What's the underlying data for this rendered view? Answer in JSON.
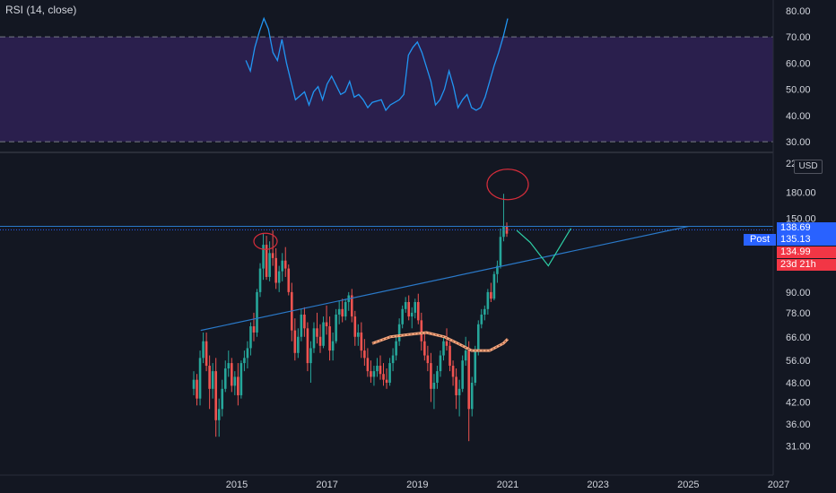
{
  "indicator": {
    "title": "RSI (14, close)"
  },
  "axis": {
    "currency": "USD"
  },
  "tags": {
    "last_price": "138.69",
    "post_label": "Post",
    "post_price": "135.13",
    "prev_price": "134.99",
    "countdown": "23d 21h"
  },
  "colors": {
    "up": "#26a69a",
    "down": "#ef5350",
    "rsi_line": "#2196f3",
    "rsi_band": "#2a1f4d",
    "trendline": "#2a79c9",
    "annotation_red": "#d62d3b",
    "annotation_green": "#2ed1a7",
    "annotation_orange": "#f7a87f"
  },
  "chart_data": [
    {
      "type": "line",
      "title": "RSI (14, close)",
      "y_ticks": [
        "80.00",
        "70.00",
        "60.00",
        "50.00",
        "40.00",
        "30.00"
      ],
      "ylim": [
        29,
        82
      ],
      "bands": [
        30,
        70
      ],
      "x": [
        2015.2,
        2015.3,
        2015.4,
        2015.5,
        2015.6,
        2015.7,
        2015.8,
        2015.9,
        2016.0,
        2016.1,
        2016.3,
        2016.5,
        2016.6,
        2016.7,
        2016.8,
        2016.9,
        2017.0,
        2017.1,
        2017.3,
        2017.4,
        2017.5,
        2017.6,
        2017.7,
        2017.8,
        2017.9,
        2018.0,
        2018.2,
        2018.3,
        2018.4,
        2018.6,
        2018.7,
        2018.8,
        2018.9,
        2019.0,
        2019.1,
        2019.3,
        2019.4,
        2019.5,
        2019.6,
        2019.7,
        2019.8,
        2019.9,
        2020.0,
        2020.1,
        2020.2,
        2020.3,
        2020.4,
        2020.5,
        2020.6,
        2020.7,
        2020.8,
        2020.9,
        2021.0
      ],
      "values": [
        61,
        57,
        66,
        72,
        77,
        73,
        64,
        61,
        69,
        60,
        46,
        49,
        44,
        49,
        51,
        46,
        52,
        55,
        48,
        49,
        53,
        47,
        48,
        46,
        43,
        45,
        46,
        42,
        44,
        46,
        48,
        63,
        66,
        68,
        64,
        53,
        44,
        46,
        50,
        57,
        51,
        43,
        46,
        48,
        43,
        42,
        43,
        47,
        53,
        59,
        64,
        70,
        77
      ],
      "color": "#2196f3"
    },
    {
      "type": "candlestick",
      "y_ticks": [
        "220.00",
        "180.00",
        "150.00",
        "120.00",
        "90.00",
        "78.00",
        "66.00",
        "56.00",
        "48.00",
        "42.00",
        "36.00",
        "31.00"
      ],
      "x_ticks": [
        "2015",
        "2017",
        "2019",
        "2021",
        "2023",
        "2025",
        "2027"
      ],
      "scale": "log",
      "ylim": [
        29,
        230
      ],
      "ohlc": [
        [
          46,
          52,
          44,
          49
        ],
        [
          49,
          51,
          41,
          43
        ],
        [
          43,
          60,
          41,
          57
        ],
        [
          57,
          68,
          55,
          64
        ],
        [
          64,
          68,
          52,
          54
        ],
        [
          54,
          58,
          40,
          46
        ],
        [
          46,
          55,
          43,
          52
        ],
        [
          52,
          57,
          33,
          37
        ],
        [
          37,
          43,
          33,
          40
        ],
        [
          40,
          49,
          38,
          46
        ],
        [
          46,
          56,
          45,
          53
        ],
        [
          53,
          60,
          50,
          55
        ],
        [
          55,
          57,
          45,
          47
        ],
        [
          47,
          52,
          44,
          50
        ],
        [
          50,
          55,
          41,
          44
        ],
        [
          44,
          56,
          43,
          55
        ],
        [
          55,
          60,
          52,
          57
        ],
        [
          57,
          64,
          53,
          61
        ],
        [
          61,
          73,
          58,
          71
        ],
        [
          71,
          78,
          64,
          68
        ],
        [
          68,
          92,
          66,
          90
        ],
        [
          90,
          110,
          87,
          106
        ],
        [
          106,
          135,
          98,
          125
        ],
        [
          125,
          133,
          98,
          100
        ],
        [
          100,
          128,
          97,
          118
        ],
        [
          118,
          138,
          108,
          114
        ],
        [
          114,
          122,
          92,
          96
        ],
        [
          96,
          108,
          90,
          104
        ],
        [
          104,
          118,
          97,
          112
        ],
        [
          112,
          123,
          100,
          106
        ],
        [
          106,
          109,
          88,
          90
        ],
        [
          90,
          96,
          64,
          69
        ],
        [
          69,
          75,
          56,
          59
        ],
        [
          59,
          70,
          57,
          66
        ],
        [
          66,
          80,
          64,
          77
        ],
        [
          77,
          81,
          66,
          70
        ],
        [
          70,
          73,
          52,
          55
        ],
        [
          55,
          64,
          48,
          61
        ],
        [
          61,
          73,
          59,
          70
        ],
        [
          70,
          78,
          63,
          66
        ],
        [
          66,
          72,
          59,
          62
        ],
        [
          62,
          76,
          61,
          73
        ],
        [
          73,
          82,
          67,
          71
        ],
        [
          71,
          76,
          56,
          60
        ],
        [
          60,
          68,
          56,
          64
        ],
        [
          64,
          80,
          63,
          77
        ],
        [
          77,
          85,
          72,
          80
        ],
        [
          80,
          86,
          73,
          76
        ],
        [
          76,
          86,
          74,
          84
        ],
        [
          84,
          90,
          79,
          88
        ],
        [
          88,
          92,
          73,
          76
        ],
        [
          76,
          79,
          62,
          66
        ],
        [
          66,
          72,
          62,
          68
        ],
        [
          68,
          73,
          57,
          60
        ],
        [
          60,
          65,
          54,
          57
        ],
        [
          57,
          61,
          50,
          52
        ],
        [
          52,
          56,
          48,
          50
        ],
        [
          50,
          54,
          47,
          52
        ],
        [
          52,
          57,
          50,
          54
        ],
        [
          54,
          58,
          49,
          51
        ],
        [
          51,
          55,
          47,
          49
        ],
        [
          49,
          53,
          46,
          48
        ],
        [
          48,
          57,
          47,
          55
        ],
        [
          55,
          61,
          52,
          58
        ],
        [
          58,
          67,
          56,
          64
        ],
        [
          64,
          75,
          62,
          72
        ],
        [
          72,
          82,
          70,
          80
        ],
        [
          80,
          87,
          78,
          84
        ],
        [
          84,
          88,
          74,
          76
        ],
        [
          76,
          81,
          70,
          78
        ],
        [
          78,
          86,
          75,
          84
        ],
        [
          84,
          89,
          72,
          74
        ],
        [
          74,
          78,
          60,
          64
        ],
        [
          64,
          68,
          56,
          58
        ],
        [
          58,
          62,
          52,
          55
        ],
        [
          55,
          59,
          42,
          46
        ],
        [
          46,
          51,
          40,
          48
        ],
        [
          48,
          54,
          46,
          52
        ],
        [
          52,
          60,
          50,
          58
        ],
        [
          58,
          66,
          56,
          64
        ],
        [
          64,
          70,
          60,
          62
        ],
        [
          62,
          64,
          52,
          54
        ],
        [
          54,
          56,
          47,
          50
        ],
        [
          50,
          53,
          40,
          44
        ],
        [
          44,
          49,
          38,
          46
        ],
        [
          46,
          58,
          45,
          56
        ],
        [
          56,
          66,
          54,
          60
        ],
        [
          60,
          64,
          32,
          40
        ],
        [
          40,
          50,
          38,
          48
        ],
        [
          48,
          62,
          47,
          60
        ],
        [
          60,
          74,
          58,
          72
        ],
        [
          72,
          80,
          70,
          77
        ],
        [
          77,
          82,
          74,
          80
        ],
        [
          80,
          92,
          77,
          90
        ],
        [
          90,
          96,
          84,
          86
        ],
        [
          86,
          104,
          85,
          102
        ],
        [
          102,
          112,
          96,
          108
        ],
        [
          108,
          140,
          106,
          132
        ],
        [
          132,
          178,
          128,
          142
        ],
        [
          142,
          146,
          132,
          135
        ]
      ],
      "trendline": {
        "from": [
          2014.2,
          69
        ],
        "to": [
          2025.0,
          142
        ]
      },
      "moving_average": [
        [
          2018.0,
          63
        ],
        [
          2018.4,
          66
        ],
        [
          2018.8,
          67
        ],
        [
          2019.2,
          68
        ],
        [
          2019.6,
          66
        ],
        [
          2019.9,
          63
        ],
        [
          2020.2,
          60
        ],
        [
          2020.6,
          60
        ],
        [
          2020.9,
          63
        ],
        [
          2021.0,
          65
        ]
      ],
      "projection": [
        [
          2021.2,
          138
        ],
        [
          2021.5,
          127
        ],
        [
          2021.9,
          108
        ],
        [
          2022.4,
          140
        ]
      ]
    }
  ]
}
